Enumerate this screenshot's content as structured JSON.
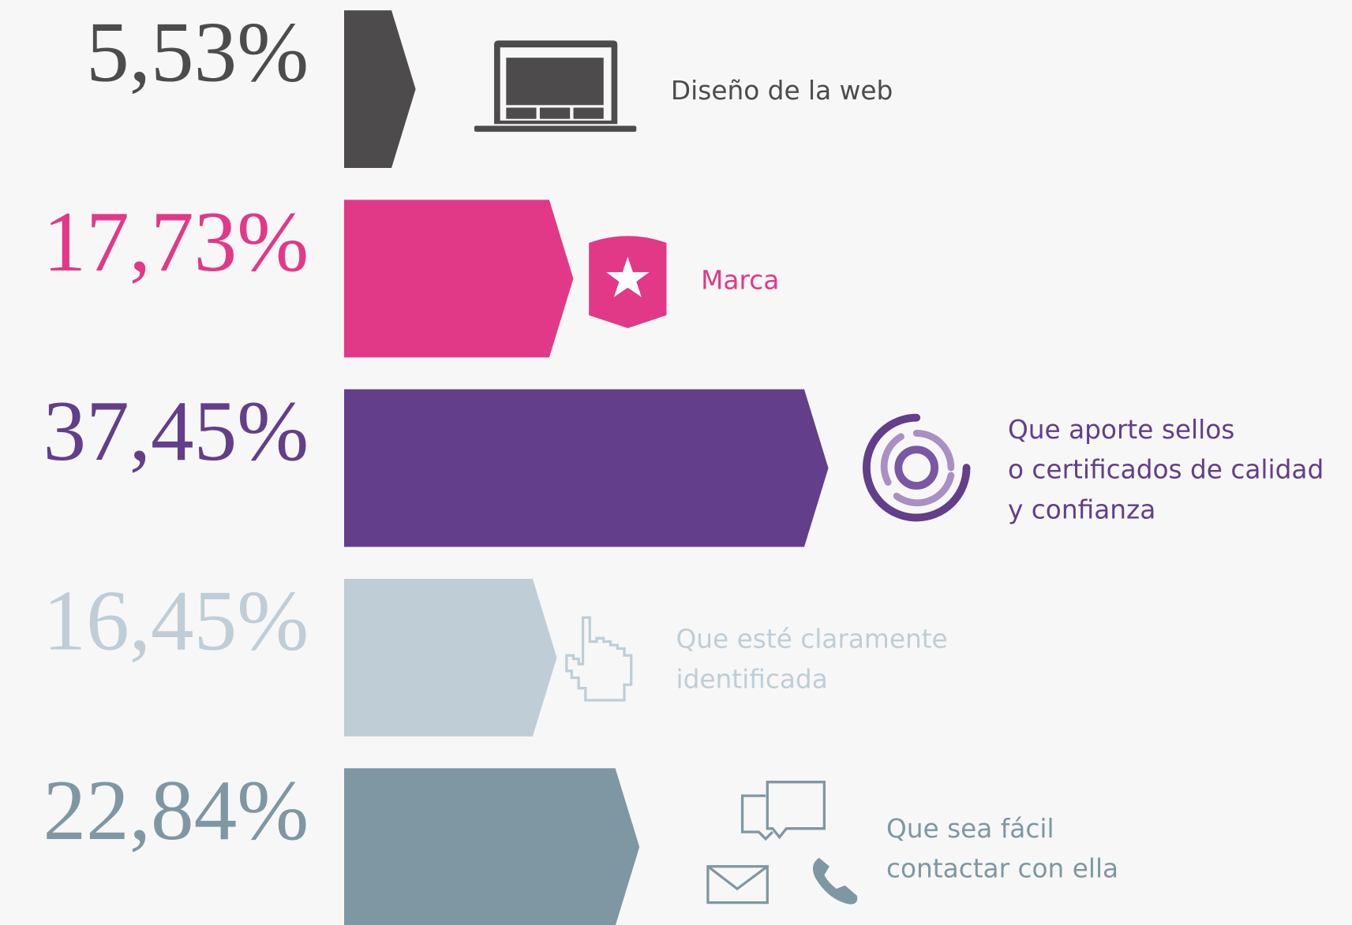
{
  "chart_data": {
    "type": "arrow-bar",
    "categories": [
      [
        "Diseño de la web"
      ],
      [
        "Marca"
      ],
      [
        "Que aporte sellos",
        "o certificados de calidad",
        "y confianza"
      ],
      [
        "Que esté claramente",
        "identificada"
      ],
      [
        "Que sea fácil",
        "contactar con ella"
      ]
    ],
    "values": [
      5.53,
      17.73,
      37.45,
      16.45,
      22.84
    ],
    "value_labels": [
      "5,53%",
      "17,73%",
      "37,45%",
      "16,45%",
      "22,84%"
    ],
    "colors": [
      "#4d4b4c",
      "#e23888",
      "#633e8a",
      "#bfced6",
      "#7f97a3"
    ]
  }
}
